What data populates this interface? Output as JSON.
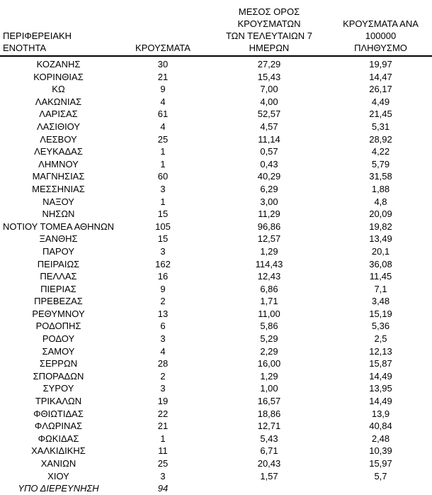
{
  "table": {
    "headers": {
      "region": "ΠΕΡΙΦΕΡΕΙΑΚΗ ΕΝΟΤΗΤΑ",
      "cases": "ΚΡΟΥΣΜΑΤΑ",
      "avg7": "ΜΕΣΟΣ ΟΡΟΣ ΚΡΟΥΣΜΑΤΩΝ\nΤΩΝ ΤΕΛΕΥΤΑΙΩΝ 7\nΗΜΕΡΩΝ",
      "per100k": "ΚΡΟΥΣΜΑΤΑ ΑΝΑ 100000\nΠΛΗΘΥΣΜΟ"
    },
    "rows": [
      {
        "region": "ΚΟΖΑΝΗΣ",
        "cases": "30",
        "avg7": "27,29",
        "per100k": "19,97"
      },
      {
        "region": "ΚΟΡΙΝΘΙΑΣ",
        "cases": "21",
        "avg7": "15,43",
        "per100k": "14,47"
      },
      {
        "region": "ΚΩ",
        "cases": "9",
        "avg7": "7,00",
        "per100k": "26,17"
      },
      {
        "region": "ΛΑΚΩΝΙΑΣ",
        "cases": "4",
        "avg7": "4,00",
        "per100k": "4,49"
      },
      {
        "region": "ΛΑΡΙΣΑΣ",
        "cases": "61",
        "avg7": "52,57",
        "per100k": "21,45"
      },
      {
        "region": "ΛΑΣΙΘΙΟΥ",
        "cases": "4",
        "avg7": "4,57",
        "per100k": "5,31"
      },
      {
        "region": "ΛΕΣΒΟΥ",
        "cases": "25",
        "avg7": "11,14",
        "per100k": "28,92"
      },
      {
        "region": "ΛΕΥΚΑΔΑΣ",
        "cases": "1",
        "avg7": "0,57",
        "per100k": "4,22"
      },
      {
        "region": "ΛΗΜΝΟΥ",
        "cases": "1",
        "avg7": "0,43",
        "per100k": "5,79"
      },
      {
        "region": "ΜΑΓΝΗΣΙΑΣ",
        "cases": "60",
        "avg7": "40,29",
        "per100k": "31,58"
      },
      {
        "region": "ΜΕΣΣΗΝΙΑΣ",
        "cases": "3",
        "avg7": "6,29",
        "per100k": "1,88"
      },
      {
        "region": "ΝΑΞΟΥ",
        "cases": "1",
        "avg7": "3,00",
        "per100k": "4,8"
      },
      {
        "region": "ΝΗΣΩΝ",
        "cases": "15",
        "avg7": "11,29",
        "per100k": "20,09"
      },
      {
        "region": "ΝΟΤΙΟΥ ΤΟΜΕΑ ΑΘΗΝΩΝ",
        "cases": "105",
        "avg7": "96,86",
        "per100k": "19,82"
      },
      {
        "region": "ΞΑΝΘΗΣ",
        "cases": "15",
        "avg7": "12,57",
        "per100k": "13,49"
      },
      {
        "region": "ΠΑΡΟΥ",
        "cases": "3",
        "avg7": "1,29",
        "per100k": "20,1"
      },
      {
        "region": "ΠΕΙΡΑΙΩΣ",
        "cases": "162",
        "avg7": "114,43",
        "per100k": "36,08"
      },
      {
        "region": "ΠΕΛΛΑΣ",
        "cases": "16",
        "avg7": "12,43",
        "per100k": "11,45"
      },
      {
        "region": "ΠΙΕΡΙΑΣ",
        "cases": "9",
        "avg7": "6,86",
        "per100k": "7,1"
      },
      {
        "region": "ΠΡΕΒΕΖΑΣ",
        "cases": "2",
        "avg7": "1,71",
        "per100k": "3,48"
      },
      {
        "region": "ΡΕΘΥΜΝΟΥ",
        "cases": "13",
        "avg7": "11,00",
        "per100k": "15,19"
      },
      {
        "region": "ΡΟΔΟΠΗΣ",
        "cases": "6",
        "avg7": "5,86",
        "per100k": "5,36"
      },
      {
        "region": "ΡΟΔΟΥ",
        "cases": "3",
        "avg7": "5,29",
        "per100k": "2,5"
      },
      {
        "region": "ΣΑΜΟΥ",
        "cases": "4",
        "avg7": "2,29",
        "per100k": "12,13"
      },
      {
        "region": "ΣΕΡΡΩΝ",
        "cases": "28",
        "avg7": "16,00",
        "per100k": "15,87"
      },
      {
        "region": "ΣΠΟΡΑΔΩΝ",
        "cases": "2",
        "avg7": "1,29",
        "per100k": "14,49"
      },
      {
        "region": "ΣΥΡΟΥ",
        "cases": "3",
        "avg7": "1,00",
        "per100k": "13,95"
      },
      {
        "region": "ΤΡΙΚΑΛΩΝ",
        "cases": "19",
        "avg7": "16,57",
        "per100k": "14,49"
      },
      {
        "region": "ΦΘΙΩΤΙΔΑΣ",
        "cases": "22",
        "avg7": "18,86",
        "per100k": "13,9"
      },
      {
        "region": "ΦΛΩΡΙΝΑΣ",
        "cases": "21",
        "avg7": "12,71",
        "per100k": "40,84"
      },
      {
        "region": "ΦΩΚΙΔΑΣ",
        "cases": "1",
        "avg7": "5,43",
        "per100k": "2,48"
      },
      {
        "region": "ΧΑΛΚΙΔΙΚΗΣ",
        "cases": "11",
        "avg7": "6,71",
        "per100k": "10,39"
      },
      {
        "region": "ΧΑΝΙΩΝ",
        "cases": "25",
        "avg7": "20,43",
        "per100k": "15,97"
      },
      {
        "region": "ΧΙΟΥ",
        "cases": "3",
        "avg7": "1,57",
        "per100k": "5,7"
      }
    ],
    "footer": {
      "region": "ΥΠΟ ΔΙΕΡΕΥΝΗΣΗ",
      "cases": "94",
      "avg7": "",
      "per100k": ""
    }
  }
}
